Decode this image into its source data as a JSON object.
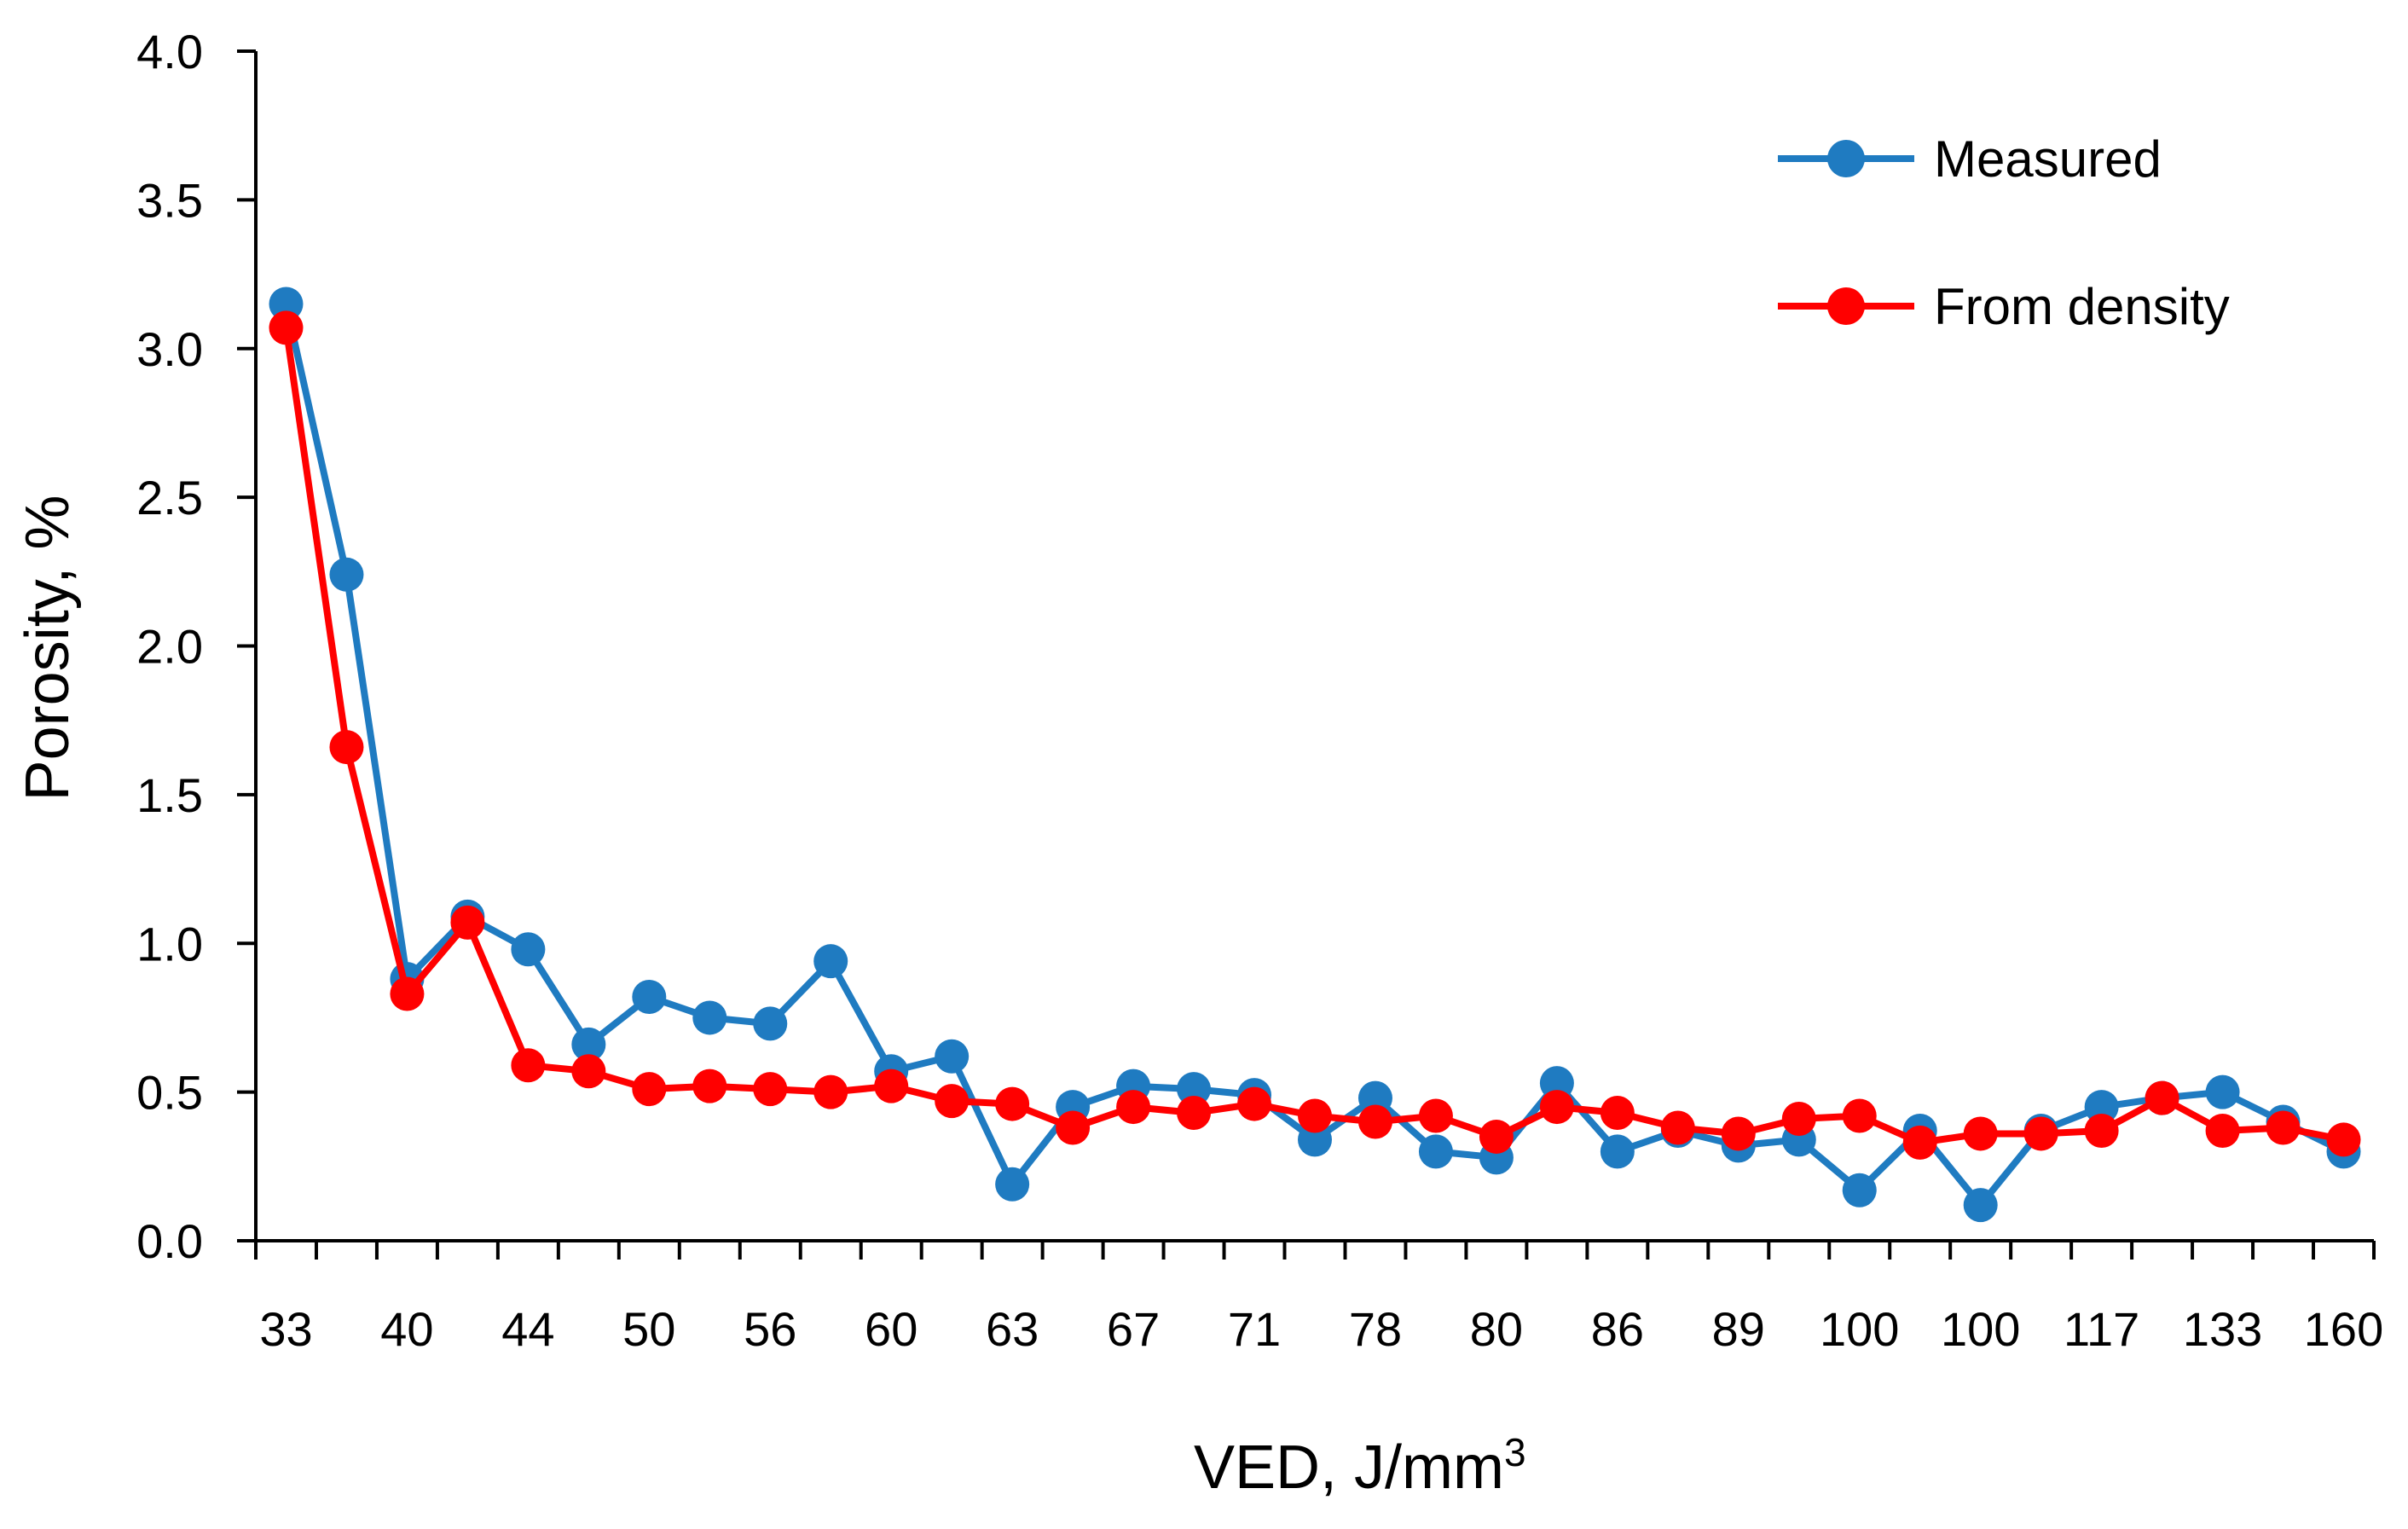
{
  "chart_data": {
    "type": "line",
    "title": "",
    "xlabel": "VED, J/mm",
    "xlabel_superscript": "3",
    "ylabel": "Porosity, %",
    "ylim": [
      0,
      4
    ],
    "yticks": [
      "0.0",
      "0.5",
      "1.0",
      "1.5",
      "2.0",
      "2.5",
      "3.0",
      "3.5",
      "4.0"
    ],
    "grid": false,
    "legend_position": "top-right",
    "categories": [
      "33",
      "",
      "40",
      "",
      "44",
      "",
      "50",
      "",
      "56",
      "",
      "60",
      "",
      "63",
      "",
      "67",
      "",
      "71",
      "",
      "78",
      "",
      "80",
      "",
      "86",
      "",
      "89",
      "",
      "100",
      "",
      "100",
      "",
      "117",
      "",
      "133",
      "",
      "160"
    ],
    "series": [
      {
        "name": "Measured",
        "color": "#1f7bc1",
        "values": [
          3.15,
          2.24,
          0.88,
          1.09,
          0.98,
          0.66,
          0.82,
          0.75,
          0.73,
          0.94,
          0.57,
          0.62,
          0.19,
          0.45,
          0.52,
          0.51,
          0.49,
          0.34,
          0.48,
          0.3,
          0.28,
          0.53,
          0.3,
          0.37,
          0.32,
          0.34,
          0.17,
          0.37,
          0.12,
          0.37,
          0.45,
          0.48,
          0.5,
          0.4,
          0.3
        ]
      },
      {
        "name": "From density",
        "color": "#ff0000",
        "values": [
          3.07,
          1.66,
          0.83,
          1.07,
          0.59,
          0.57,
          0.51,
          0.52,
          0.51,
          0.5,
          0.52,
          0.47,
          0.46,
          0.38,
          0.45,
          0.43,
          0.46,
          0.42,
          0.4,
          0.42,
          0.35,
          0.45,
          0.43,
          0.38,
          0.36,
          0.41,
          0.42,
          0.33,
          0.36,
          0.36,
          0.37,
          0.48,
          0.37,
          0.38,
          0.34
        ]
      }
    ]
  }
}
